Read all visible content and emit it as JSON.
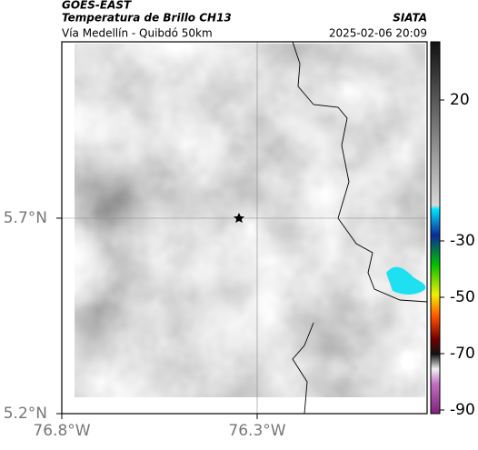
{
  "header": {
    "satellite": "GOES-EAST",
    "title": "Temperatura de Brillo CH13",
    "source": "SIATA",
    "subtitle": "Vía Medellín - Quibdó 50km",
    "datetime": "2025-02-06 20:09"
  },
  "map": {
    "lat_ticks": [
      {
        "value": 5.7,
        "label": "5.7°N"
      },
      {
        "value": 5.2,
        "label": "5.2°N"
      }
    ],
    "lon_ticks": [
      {
        "value": -76.8,
        "label": "76.8°W"
      },
      {
        "value": -76.3,
        "label": "76.3°W"
      }
    ]
  },
  "colorbar": {
    "ticks": [
      20,
      -30,
      -50,
      -70,
      -90
    ]
  }
}
